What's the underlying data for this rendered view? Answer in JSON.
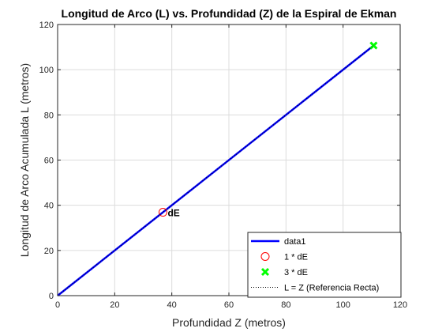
{
  "chart_data": {
    "type": "line",
    "title": "Longitud de Arco (L) vs. Profundidad (Z) de la Espiral de Ekman",
    "xlabel": "Profundidad Z (metros)",
    "ylabel": "Longitud de Arco Acumulada L (metros)",
    "xlim": [
      0,
      120
    ],
    "ylim": [
      0,
      120
    ],
    "xticks": [
      0,
      20,
      40,
      60,
      80,
      100,
      120
    ],
    "yticks": [
      0,
      20,
      40,
      60,
      80,
      100,
      120
    ],
    "grid": true,
    "legend_position": "bottom-right",
    "series": [
      {
        "name": "data1",
        "kind": "line",
        "color": "#0000ff",
        "x": [
          0,
          110.7
        ],
        "y": [
          0,
          110.7
        ]
      },
      {
        "name": "1 * dE",
        "kind": "marker-circle",
        "color": "#ff0000",
        "x": [
          36.9
        ],
        "y": [
          36.9
        ]
      },
      {
        "name": "3 * dE",
        "kind": "marker-x",
        "color": "#00ff00",
        "x": [
          110.7
        ],
        "y": [
          110.7
        ]
      },
      {
        "name": "L = Z (Referencia Recta)",
        "kind": "dotted-line",
        "color": "#000000",
        "x": [
          0,
          110.7
        ],
        "y": [
          0,
          110.7
        ]
      }
    ],
    "annotations": [
      {
        "text": "dE",
        "x": 36.9,
        "y": 36.9
      }
    ]
  }
}
